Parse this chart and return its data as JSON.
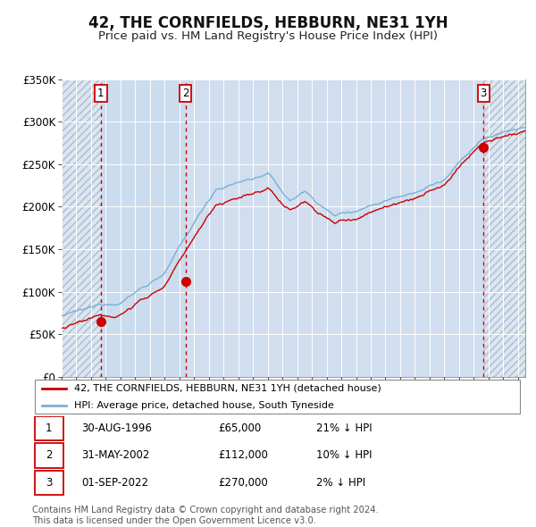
{
  "title": "42, THE CORNFIELDS, HEBBURN, NE31 1YH",
  "subtitle": "Price paid vs. HM Land Registry's House Price Index (HPI)",
  "ylim": [
    0,
    350000
  ],
  "yticks": [
    0,
    50000,
    100000,
    150000,
    200000,
    250000,
    300000,
    350000
  ],
  "ytick_labels": [
    "£0",
    "£50K",
    "£100K",
    "£150K",
    "£200K",
    "£250K",
    "£300K",
    "£350K"
  ],
  "xlim_start": 1994.0,
  "xlim_end": 2025.5,
  "background_color": "#ffffff",
  "plot_bg_color": "#dce6f1",
  "grid_color": "#ffffff",
  "red_line_color": "#cc0000",
  "blue_line_color": "#7bafd4",
  "purchase_dates": [
    1996.664,
    2002.414,
    2022.664
  ],
  "purchase_prices": [
    65000,
    112000,
    270000
  ],
  "purchase_labels": [
    "1",
    "2",
    "3"
  ],
  "legend_entries": [
    "42, THE CORNFIELDS, HEBBURN, NE31 1YH (detached house)",
    "HPI: Average price, detached house, South Tyneside"
  ],
  "table_data": [
    [
      "1",
      "30-AUG-1996",
      "£65,000",
      "21% ↓ HPI"
    ],
    [
      "2",
      "31-MAY-2002",
      "£112,000",
      "10% ↓ HPI"
    ],
    [
      "3",
      "01-SEP-2022",
      "£270,000",
      "2% ↓ HPI"
    ]
  ],
  "footer": "Contains HM Land Registry data © Crown copyright and database right 2024.\nThis data is licensed under the Open Government Licence v3.0.",
  "title_fontsize": 12,
  "subtitle_fontsize": 9.5
}
